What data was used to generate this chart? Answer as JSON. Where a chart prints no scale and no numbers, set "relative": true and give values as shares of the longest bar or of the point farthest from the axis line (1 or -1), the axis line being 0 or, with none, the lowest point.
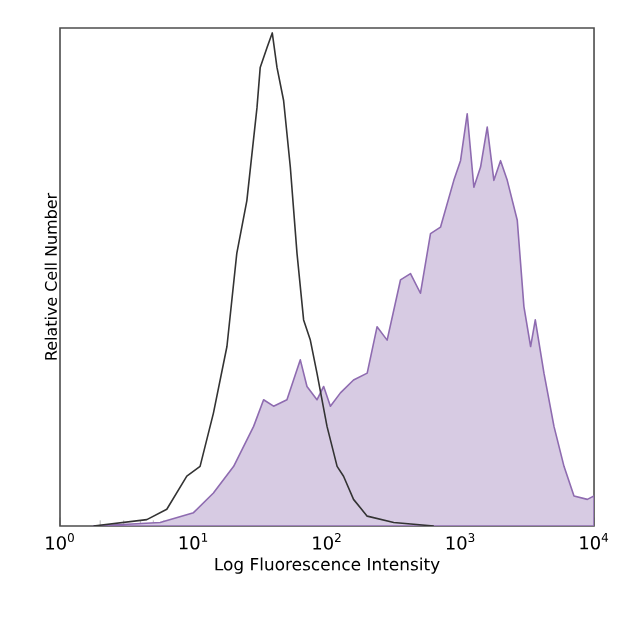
{
  "chart_data": {
    "type": "line",
    "relative": true,
    "log": "x",
    "xlabel": "Log Fluorescence Intensity",
    "ylabel": "Relative Cell Number",
    "xlim": [
      1,
      10000
    ],
    "xticks": [
      {
        "value": 1,
        "label": "10$^{0}$"
      },
      {
        "value": 10,
        "label": "10$^{1}$"
      },
      {
        "value": 100,
        "label": "10$^{2}$"
      },
      {
        "value": 1000,
        "label": "10$^{3}$"
      },
      {
        "value": 10000,
        "label": "10$^{4}$"
      }
    ],
    "series": [
      {
        "type": "area",
        "color": "#8e6bb0",
        "x": [
          1.78,
          5.62,
          10,
          14.1,
          20.0,
          28.2,
          33.5,
          39.8,
          50.1,
          63.1,
          70.8,
          84.1,
          94.4,
          106,
          126,
          158,
          200,
          237,
          282,
          355,
          422,
          501,
          596,
          708,
          891,
          1000,
          1122,
          1259,
          1413,
          1585,
          1778,
          1995,
          2239,
          2661,
          2985,
          3350,
          3631,
          4217,
          5012,
          5957,
          7079,
          8913,
          10000
        ],
        "values": [
          0,
          0.007,
          0.027,
          0.067,
          0.121,
          0.202,
          0.256,
          0.243,
          0.256,
          0.337,
          0.283,
          0.256,
          0.283,
          0.243,
          0.27,
          0.296,
          0.31,
          0.404,
          0.377,
          0.499,
          0.512,
          0.472,
          0.593,
          0.606,
          0.701,
          0.741,
          0.836,
          0.687,
          0.728,
          0.809,
          0.701,
          0.741,
          0.701,
          0.62,
          0.445,
          0.364,
          0.418,
          0.31,
          0.202,
          0.121,
          0.061,
          0.054,
          0.061
        ]
      },
      {
        "color": "#333333",
        "x": [
          1.78,
          4.47,
          6.31,
          8.91,
          11.2,
          14.1,
          17.8,
          21.1,
          25.1,
          29.9,
          31.6,
          35.5,
          38.9,
          42.2,
          47.3,
          53.1,
          59.6,
          66.8,
          75.0,
          84.1,
          100,
          119,
          133,
          158,
          200,
          316,
          631
        ],
        "values": [
          0,
          0.013,
          0.034,
          0.101,
          0.121,
          0.229,
          0.364,
          0.553,
          0.66,
          0.849,
          0.93,
          0.97,
          1.0,
          0.93,
          0.863,
          0.728,
          0.553,
          0.418,
          0.377,
          0.31,
          0.202,
          0.121,
          0.101,
          0.054,
          0.02,
          0.007,
          0
        ]
      }
    ],
    "grid": false
  }
}
